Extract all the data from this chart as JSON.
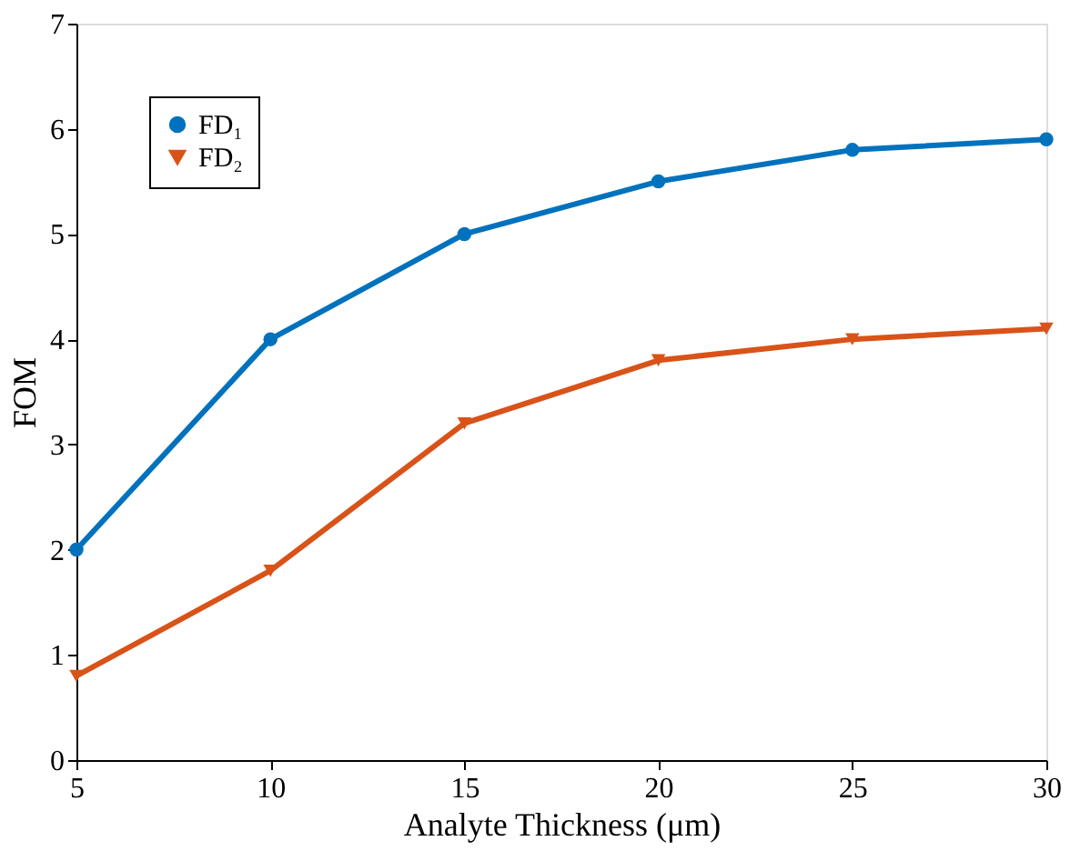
{
  "chart_data": {
    "type": "line",
    "xlabel": "Analyte Thickness (μm)",
    "ylabel": "FOM",
    "x": [
      5,
      10,
      15,
      20,
      25,
      30
    ],
    "series": [
      {
        "name": "FD₁",
        "color": "#0072bd",
        "marker": "circle",
        "values": [
          2.0,
          4.0,
          5.0,
          5.5,
          5.8,
          5.9
        ]
      },
      {
        "name": "FD₂",
        "color": "#d95319",
        "marker": "triangle",
        "values": [
          0.8,
          1.8,
          3.2,
          3.8,
          4.0,
          4.1
        ]
      }
    ],
    "xlim": [
      5,
      30
    ],
    "xticks": [
      5,
      10,
      15,
      20,
      25,
      30
    ],
    "ylim": [
      0,
      7
    ],
    "yticks": [
      0,
      1,
      2,
      3,
      4,
      5,
      6,
      7
    ],
    "grid": false,
    "legend": "top left",
    "line_style": "solid"
  }
}
